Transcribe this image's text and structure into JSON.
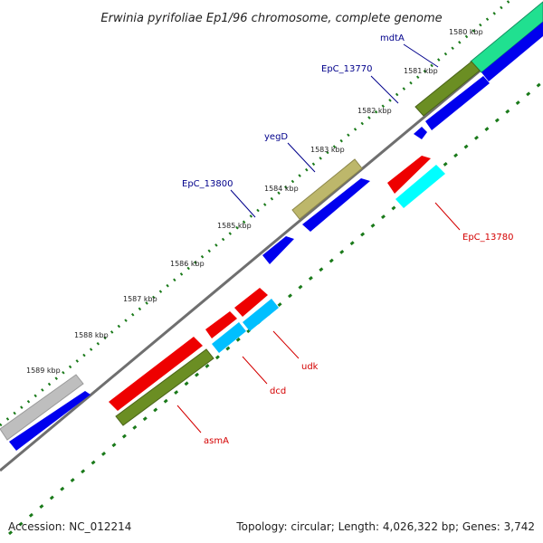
{
  "title": "Erwinia pyrifoliae Ep1/96 chromosome, complete genome",
  "footer": {
    "accession": "Accession: NC_012214",
    "summary": "Topology: circular; Length: 4,026,322 bp; Genes: 3,742"
  },
  "ticks": [
    "1580 kbp",
    "1581 kbp",
    "1582 kbp",
    "1583 kbp",
    "1584 kbp",
    "1585 kbp",
    "1586 kbp",
    "1587 kbp",
    "1588 kbp",
    "1589 kbp"
  ],
  "genes": [
    {
      "name": "mdtA",
      "color": "#00008b"
    },
    {
      "name": "EpC_13770",
      "color": "#00008b"
    },
    {
      "name": "yegD",
      "color": "#00008b"
    },
    {
      "name": "EpC_13800",
      "color": "#00008b"
    },
    {
      "name": "EpC_13780",
      "color": "#d40000"
    },
    {
      "name": "udk",
      "color": "#d40000"
    },
    {
      "name": "dcd",
      "color": "#d40000"
    },
    {
      "name": "asmA",
      "color": "#d40000"
    }
  ],
  "colors": {
    "backbone": "#6f6f6f",
    "tick": "#1a7a1a",
    "feature_blue": "#0000ee",
    "feature_red": "#ee0000",
    "feature_olive": "#6b8e23",
    "feature_khaki": "#bdb76b",
    "feature_cyan": "#00ffff",
    "feature_skyblue": "#00bfff",
    "feature_grey": "#bebebe",
    "feature_green": "#20e090"
  }
}
